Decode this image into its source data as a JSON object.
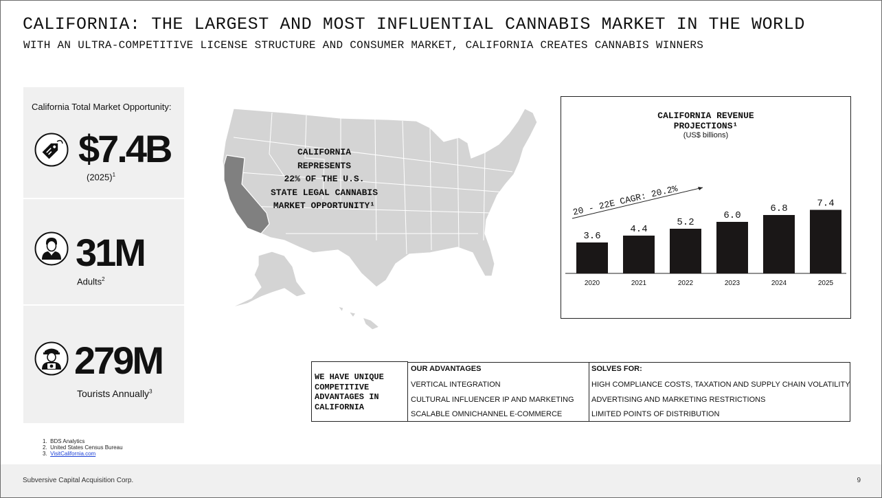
{
  "header": {
    "title": "CALIFORNIA: THE LARGEST AND MOST INFLUENTIAL CANNABIS MARKET IN THE WORLD",
    "subtitle": "WITH AN ULTRA-COMPETITIVE LICENSE STRUCTURE AND CONSUMER MARKET, CALIFORNIA CREATES CANNABIS WINNERS"
  },
  "stats": {
    "caption": "California Total Market Opportunity:",
    "items": [
      {
        "icon": "price-tag-icon",
        "value": "$7.4B",
        "label": "(2025)",
        "footnote": "1"
      },
      {
        "icon": "adult-person-icon",
        "value": "31M",
        "label": "Adults",
        "footnote": "2"
      },
      {
        "icon": "tourist-camera-icon",
        "value": "279M",
        "label": "Tourists Annually",
        "footnote": "3"
      }
    ]
  },
  "map": {
    "label_lines": [
      "CALIFORNIA",
      "REPRESENTS",
      "22% OF THE U.S.",
      "STATE LEGAL CANNABIS",
      "MARKET OPPORTUNITY¹"
    ],
    "highlight_color": "#808080",
    "base_color": "#d4d4d4"
  },
  "chart_data": {
    "type": "bar",
    "title_lines": [
      "CALIFORNIA REVENUE",
      "PROJECTIONS¹"
    ],
    "unit_label": "(US$ billions)",
    "categories": [
      "2020",
      "2021",
      "2022",
      "2023",
      "2024",
      "2025"
    ],
    "values": [
      3.6,
      4.4,
      5.2,
      6.0,
      6.8,
      7.4
    ],
    "value_labels": [
      "3.6",
      "4.4",
      "5.2",
      "6.0",
      "6.8",
      "7.4"
    ],
    "annotation": "20 - 22E CAGR: 20.2%",
    "bar_color": "#1a1717",
    "grid": false
  },
  "advantages": {
    "intro": [
      "WE HAVE UNIQUE",
      "COMPETITIVE",
      "ADVANTAGES IN",
      "CALIFORNIA"
    ],
    "headers": [
      "OUR ADVANTAGES",
      "SOLVES FOR:"
    ],
    "rows": [
      [
        "VERTICAL INTEGRATION",
        "HIGH COMPLIANCE COSTS, TAXATION AND SUPPLY CHAIN VOLATILITY"
      ],
      [
        "CULTURAL INFLUENCER IP AND MARKETING",
        "ADVERTISING AND MARKETING RESTRICTIONS"
      ],
      [
        "SCALABLE OMNICHANNEL E-COMMERCE",
        "LIMITED POINTS OF DISTRIBUTION"
      ]
    ]
  },
  "footnotes": [
    {
      "num": "1.",
      "text": "BDS Analytics"
    },
    {
      "num": "2.",
      "text": "United States Census Bureau"
    },
    {
      "num": "3.",
      "text": "VisitCalifornia.com"
    }
  ],
  "footer": {
    "company": "Subversive Capital Acquisition Corp.",
    "page_number": "9"
  }
}
